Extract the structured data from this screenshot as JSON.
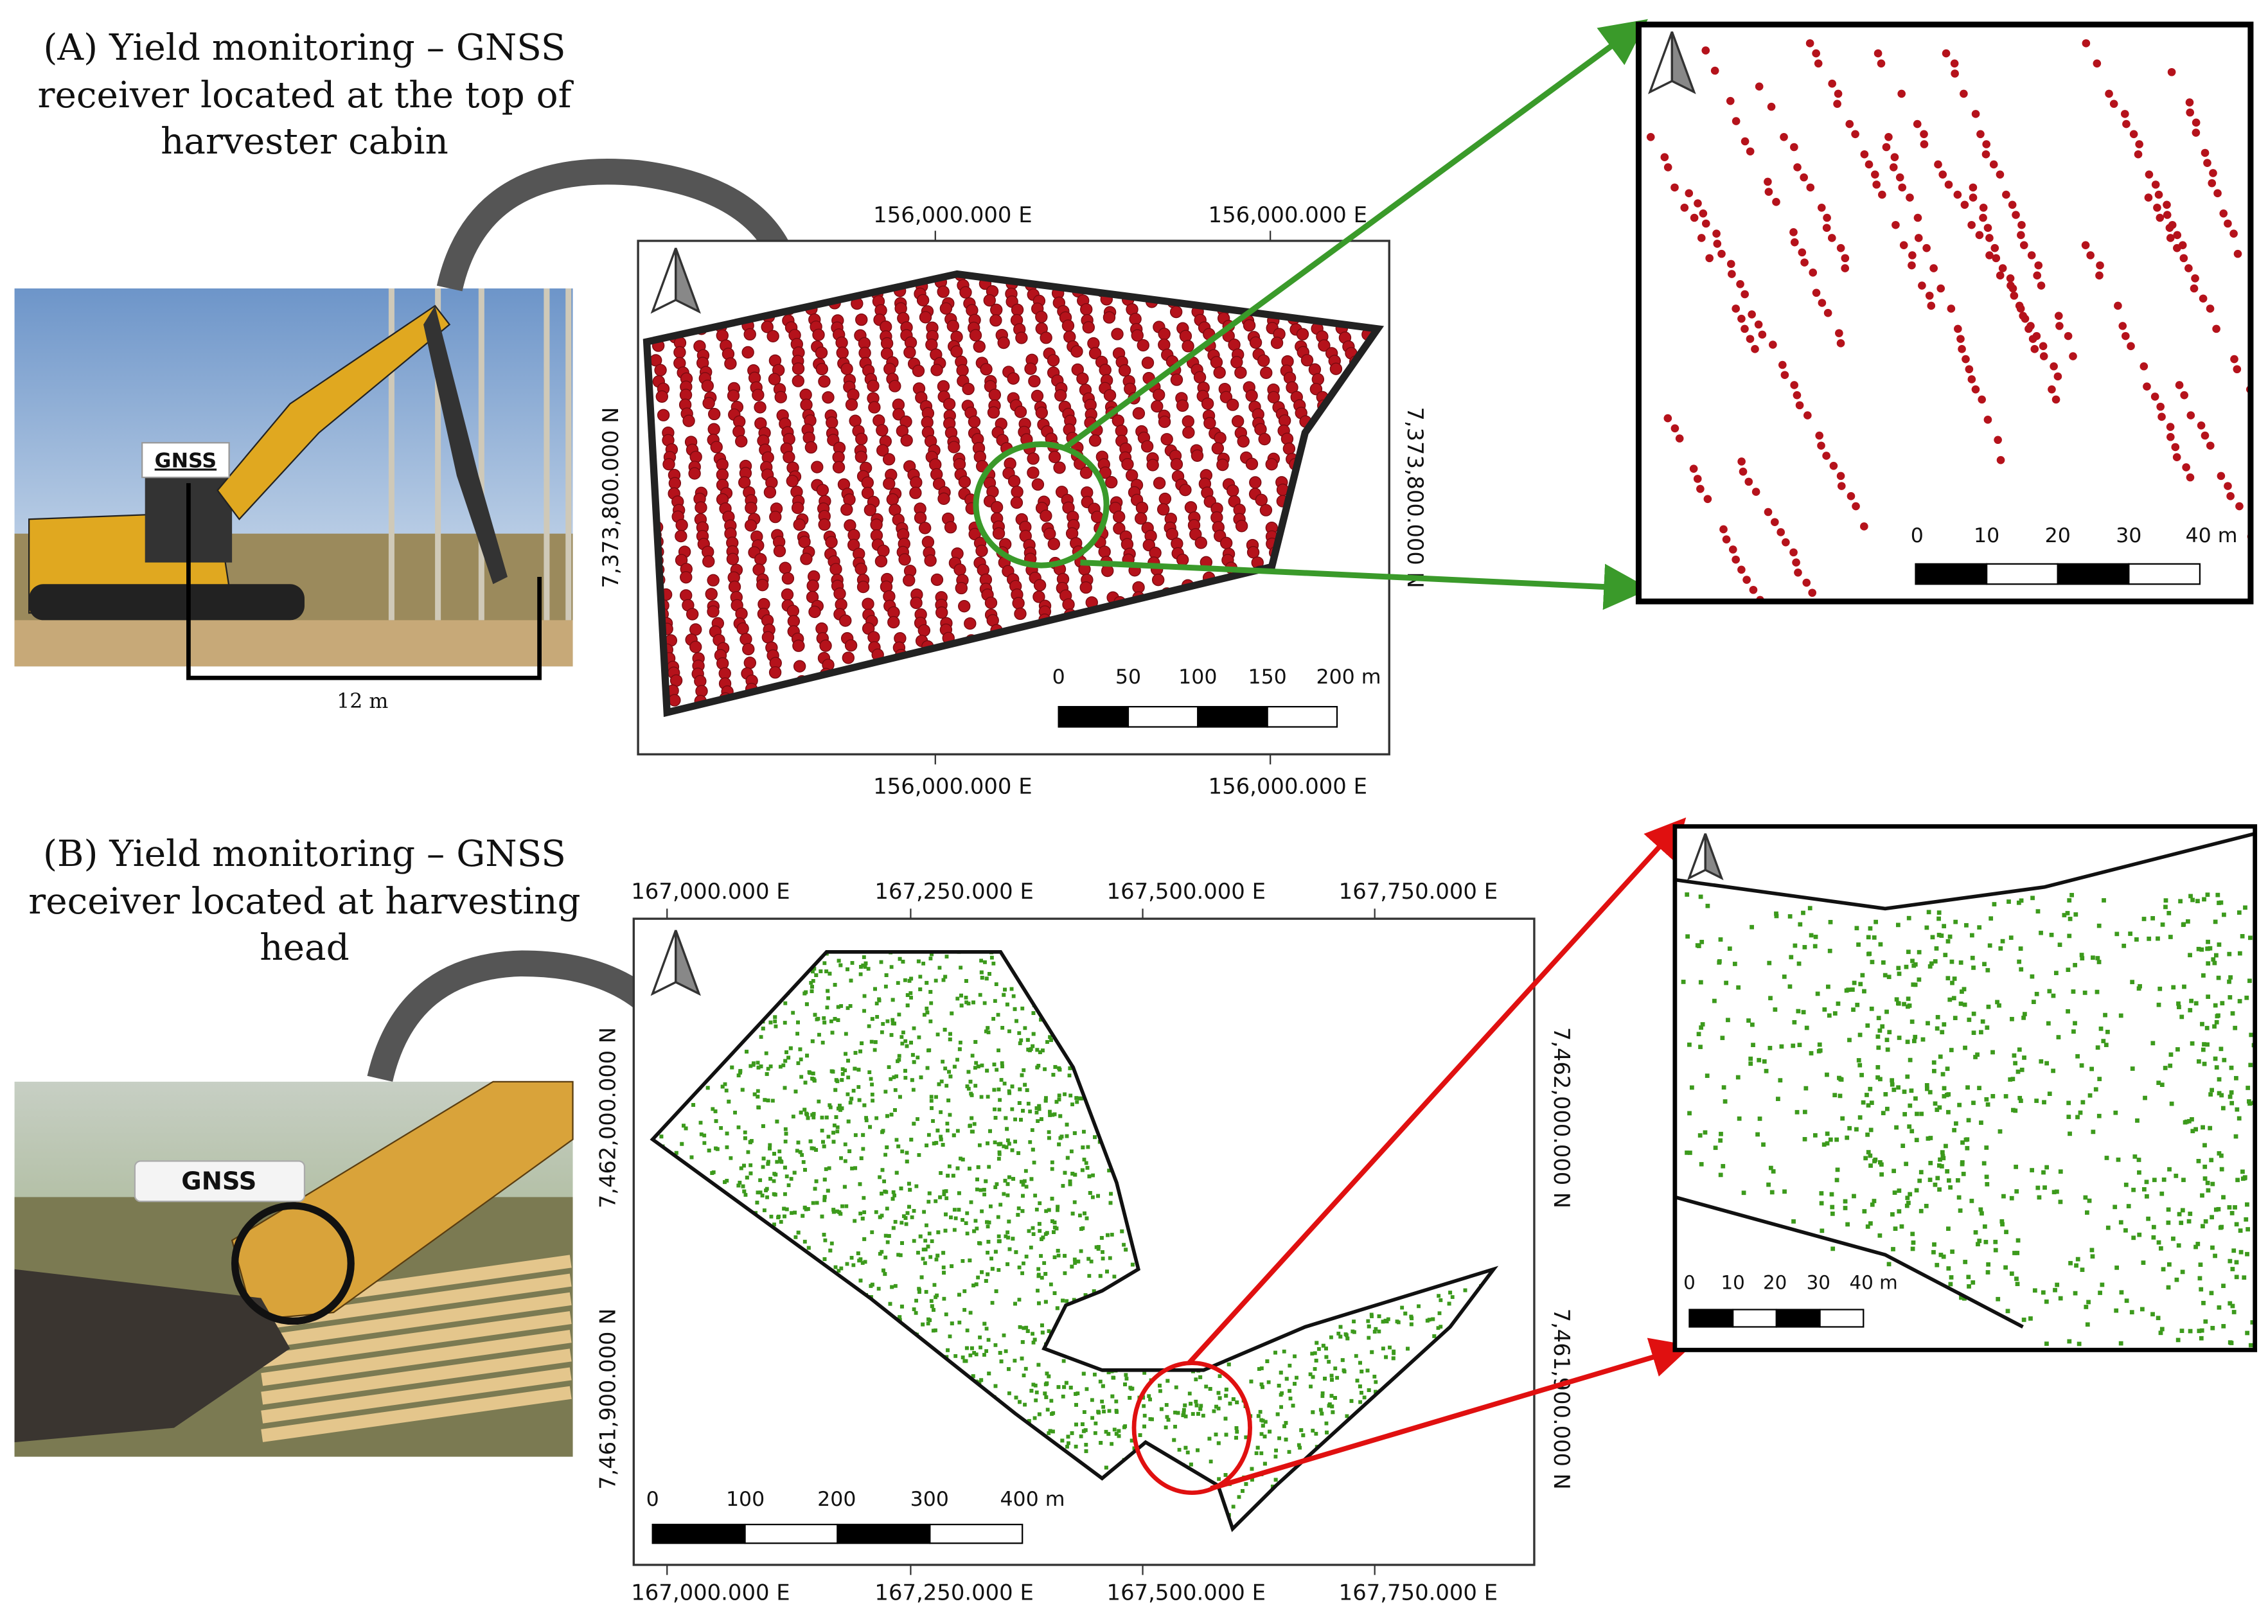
{
  "panels": [
    {
      "title": [
        "(A) Yield monitoring – GNSS",
        "receiver located at the top of",
        "harvester cabin"
      ],
      "photo_label": "GNSS",
      "photo_dimension": "12 m",
      "map": {
        "top_x_labels": [
          "156,000.000 E",
          "156,000.000 E"
        ],
        "bottom_x_labels": [
          "156,000.000 E",
          "156,000.000 E"
        ],
        "left_y_labels": [
          "7,373,800.000 N"
        ],
        "right_y_labels": [
          "7,373,800.000 N"
        ],
        "scale_labels": [
          "0",
          "50",
          "100",
          "150",
          "200 m"
        ]
      },
      "inset": {
        "scale_labels": [
          "0",
          "10",
          "20",
          "30",
          "40 m"
        ]
      }
    },
    {
      "title": [
        "(B) Yield monitoring – GNSS",
        "receiver located at harvesting",
        "head"
      ],
      "photo_label": "GNSS",
      "map": {
        "top_x_labels": [
          "167,000.000 E",
          "167,250.000 E",
          "167,500.000 E",
          "167,750.000 E"
        ],
        "bottom_x_labels": [
          "167,000.000 E",
          "167,250.000 E",
          "167,500.000 E",
          "167,750.000 E"
        ],
        "left_y_labels": [
          "7,462,000.000 N",
          "7,461,900.000 N"
        ],
        "right_y_labels": [
          "7,462,000.000 N",
          "7,461,900.000 N"
        ],
        "scale_labels": [
          "0",
          "100",
          "200",
          "300",
          "400 m"
        ]
      },
      "inset": {
        "scale_labels": [
          "0",
          "10",
          "20",
          "30",
          "40 m"
        ]
      }
    }
  ]
}
